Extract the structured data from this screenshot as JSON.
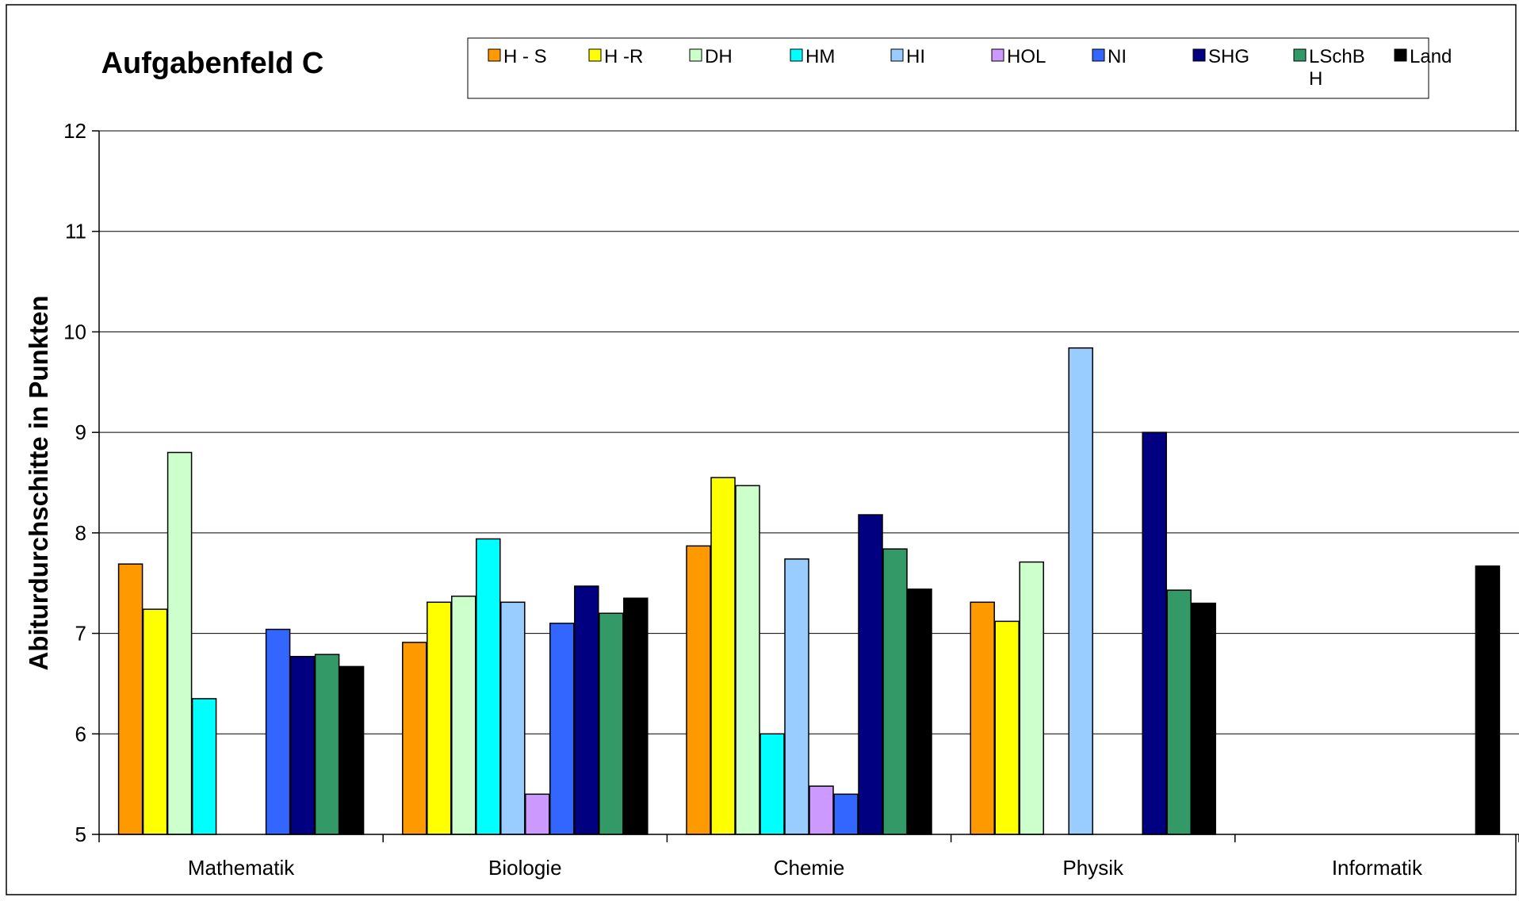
{
  "chart_data": {
    "type": "bar",
    "title": "Aufgabenfeld C",
    "ylabel": "Abiturdurchschitte in Punkten",
    "xlabel": "",
    "ylim": [
      5,
      12
    ],
    "yticks": [
      5,
      6,
      7,
      8,
      9,
      10,
      11,
      12
    ],
    "grid": true,
    "legend_placement": "top",
    "categories": [
      "Mathematik",
      "Biologie",
      "Chemie",
      "Physik",
      "Informatik"
    ],
    "series": [
      {
        "name": "H - S",
        "color": "#FF9900",
        "values": [
          7.69,
          6.91,
          7.87,
          7.31,
          null
        ]
      },
      {
        "name": "H -R",
        "color": "#FFFF00",
        "values": [
          7.24,
          7.31,
          8.55,
          7.12,
          null
        ]
      },
      {
        "name": "DH",
        "color": "#CCFFCC",
        "values": [
          8.8,
          7.37,
          8.47,
          7.71,
          null
        ]
      },
      {
        "name": "HM",
        "color": "#00FFFF",
        "values": [
          6.35,
          7.94,
          6.0,
          null,
          null
        ]
      },
      {
        "name": "HI",
        "color": "#99CCFF",
        "values": [
          null,
          7.31,
          7.74,
          9.84,
          null
        ]
      },
      {
        "name": "HOL",
        "color": "#CC99FF",
        "values": [
          null,
          5.4,
          5.48,
          null,
          null
        ]
      },
      {
        "name": "NI",
        "color": "#3366FF",
        "values": [
          7.04,
          7.1,
          5.4,
          null,
          null
        ]
      },
      {
        "name": "SHG",
        "color": "#000080",
        "values": [
          6.77,
          7.47,
          8.18,
          9.0,
          null
        ]
      },
      {
        "name": "LSchB H",
        "color": "#339966",
        "values": [
          6.79,
          7.2,
          7.84,
          7.43,
          null
        ]
      },
      {
        "name": "Land",
        "color": "#000000",
        "values": [
          6.67,
          7.35,
          7.44,
          7.3,
          7.67
        ]
      }
    ]
  }
}
